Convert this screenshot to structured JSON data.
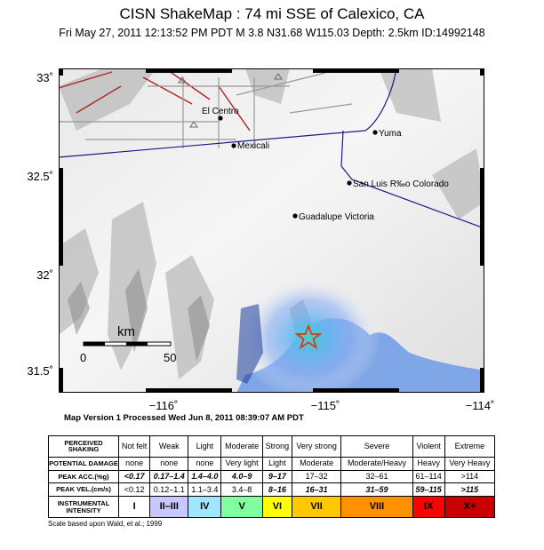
{
  "title": "CISN ShakeMap : 74 mi SSE of Calexico, CA",
  "subtitle": "Fri May 27, 2011 12:13:52 PM PDT   M 3.8   N31.68 W115.03   Depth: 2.5km   ID:14992148",
  "map": {
    "y_ticks": [
      "33˚",
      "32.5˚",
      "32˚",
      "31.5˚"
    ],
    "x_ticks": [
      "−116˚",
      "−115˚",
      "−114˚"
    ],
    "places": [
      "El Centro",
      "Mexicali",
      "Yuma",
      "San Luis R‰o Colorado",
      "Guadalupe Victoria"
    ],
    "scalebar": {
      "unit": "km",
      "min": "0",
      "max": "50"
    },
    "epicenter": {
      "lat": 31.68,
      "lon": -115.03,
      "marker": "star-icon"
    },
    "colors": {
      "water": "#7fa6e6",
      "fault": "#b22222",
      "border": "#1a1a8c",
      "star": "#d93a1a"
    }
  },
  "version": "Map Version 1 Processed Wed Jun  8, 2011 08:39:07 AM PDT",
  "legend": {
    "rows": {
      "shaking": {
        "label": "PERCEIVED SHAKING",
        "values": [
          "Not felt",
          "Weak",
          "Light",
          "Moderate",
          "Strong",
          "Very strong",
          "Severe",
          "Violent",
          "Extreme"
        ]
      },
      "damage": {
        "label": "POTENTIAL DAMAGE",
        "values": [
          "none",
          "none",
          "none",
          "Very light",
          "Light",
          "Moderate",
          "Moderate/Heavy",
          "Heavy",
          "Very Heavy"
        ]
      },
      "acc": {
        "label": "PEAK ACC.(%g)",
        "values": [
          "<0.17",
          "0.17–1.4",
          "1.4–4.0",
          "4.0–9",
          "9–17",
          "17–32",
          "32–61",
          "61–114",
          ">114"
        ]
      },
      "vel": {
        "label": "PEAK VEL.(cm/s)",
        "values": [
          "<0.12",
          "0.12–1.1",
          "1.1–3.4",
          "3.4–8",
          "8–16",
          "16–31",
          "31–59",
          "59–115",
          ">115"
        ]
      },
      "intensity": {
        "label": "INSTRUMENTAL INTENSITY",
        "values": [
          "I",
          "II–III",
          "IV",
          "V",
          "VI",
          "VII",
          "VIII",
          "IX",
          "X+"
        ]
      }
    },
    "intensity_colors": [
      "#ffffff",
      "#c8c8ff",
      "#a0e6ff",
      "#80ffa0",
      "#ffff00",
      "#ffc800",
      "#ff9000",
      "#ff0000",
      "#c80000"
    ],
    "note": "Scale based upon Wald, et al.; 1999"
  }
}
